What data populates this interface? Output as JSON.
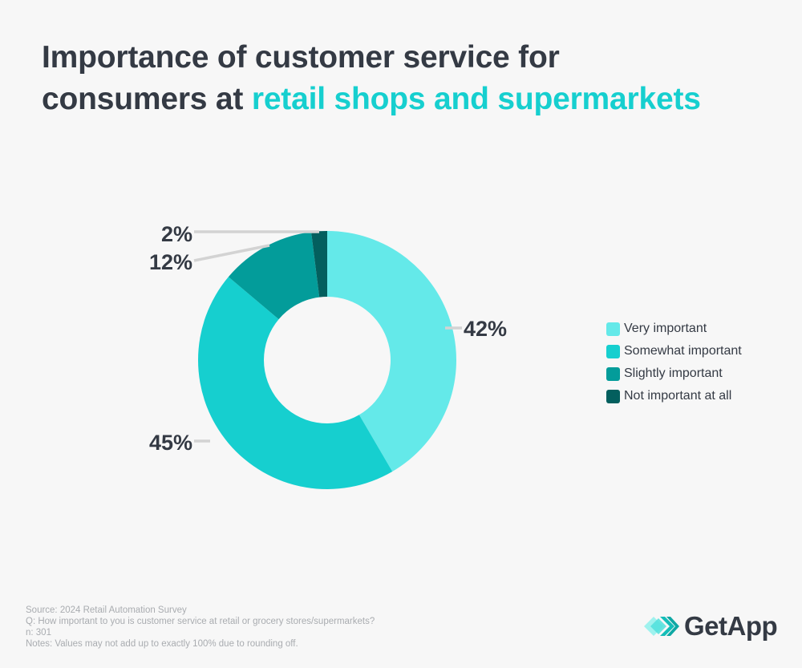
{
  "title": {
    "line1": "Importance of customer service for",
    "line2_prefix": "consumers at ",
    "line2_accent": "retail shops and supermarkets",
    "accent_color": "#16cfcf",
    "text_color": "#343a44"
  },
  "chart_data": {
    "type": "pie",
    "subtype": "donut",
    "title": "Importance of customer service for consumers at retail shops and supermarkets",
    "categories": [
      "Very important",
      "Somewhat important",
      "Slightly important",
      "Not important at all"
    ],
    "values": [
      42,
      45,
      12,
      2
    ],
    "labels": [
      "42%",
      "45%",
      "12%",
      "2%"
    ],
    "colors": [
      "#64e9e9",
      "#16cfcf",
      "#039c9a",
      "#035f5e"
    ],
    "legend_position": "right",
    "start_angle": "12 o'clock, clockwise"
  },
  "legend": {
    "items": [
      {
        "label": "Very important",
        "color": "#64e9e9"
      },
      {
        "label": "Somewhat important",
        "color": "#16cfcf"
      },
      {
        "label": "Slightly important",
        "color": "#039c9a"
      },
      {
        "label": "Not important at all",
        "color": "#035f5e"
      }
    ]
  },
  "footnotes": {
    "source": "Source: 2024 Retail Automation Survey",
    "question": "Q: How important to you is customer service at retail or grocery stores/supermarkets?",
    "n": "n: 301",
    "notes": "Notes: Values may not add up to exactly 100% due to rounding off."
  },
  "logo": {
    "text": "GetApp",
    "icon": "getapp-chevrons-icon"
  }
}
